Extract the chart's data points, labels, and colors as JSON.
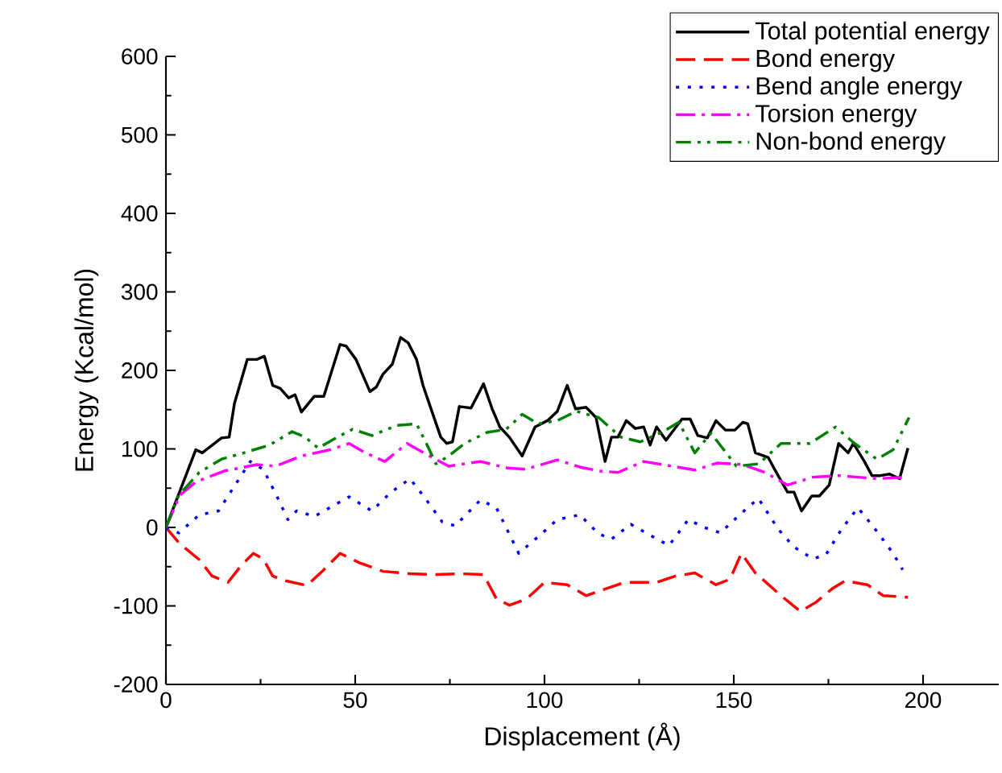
{
  "chart_data": {
    "type": "line",
    "xlabel": "Displacement (Å)",
    "ylabel": "Energy (Kcal/mol)",
    "xlim": [
      0,
      220
    ],
    "ylim": [
      -200,
      600
    ],
    "xticks": [
      0,
      50,
      100,
      150,
      200
    ],
    "yticks": [
      -200,
      -100,
      0,
      100,
      200,
      300,
      400,
      500,
      600
    ],
    "legend": "top right",
    "grid": false,
    "marker": "none",
    "series": [
      {
        "name": "Total potential energy",
        "color": "#000000",
        "line_style": "solid",
        "x": [
          0,
          7.9,
          9.6,
          14.7,
          16.7,
          18.1,
          21.5,
          24,
          26,
          28.2,
          30.2,
          32.4,
          34.1,
          35.8,
          39.2,
          41.7,
          46,
          47.6,
          50.2,
          53.9,
          55.6,
          57.3,
          59.8,
          62,
          64,
          66.2,
          67.9,
          69.6,
          72.6,
          74.2,
          75.7,
          77.5,
          80.6,
          83.9,
          86.1,
          88.2,
          90.7,
          94.1,
          97.5,
          100.8,
          103.4,
          106,
          108.2,
          111,
          113.6,
          116,
          117.7,
          119.4,
          121.6,
          124,
          126.2,
          127.9,
          129.6,
          132.1,
          136.3,
          138.5,
          140.5,
          143,
          145.3,
          147.8,
          150.3,
          152.4,
          153.7,
          155.7,
          159.1,
          161.7,
          164.2,
          165.9,
          167.9,
          170.6,
          172.6,
          175.2,
          177.7,
          180.2,
          181.6,
          184.5,
          186.5,
          188.7,
          191.2,
          193.8,
          196
        ],
        "values": [
          0,
          99,
          95,
          114,
          115,
          158,
          214,
          214,
          218,
          181,
          177,
          165,
          169,
          147,
          167,
          167,
          233,
          231,
          214,
          173,
          179,
          195,
          208,
          242,
          235,
          214,
          181,
          157,
          115,
          107,
          109,
          154,
          152,
          183,
          152,
          128,
          115,
          91,
          128,
          136,
          148,
          181,
          151,
          153,
          140,
          84,
          115,
          115,
          136,
          126,
          128,
          105,
          128,
          111,
          138,
          138,
          117,
          114,
          136,
          124,
          124,
          134,
          132,
          95,
          89,
          66,
          45,
          45,
          21,
          40,
          40,
          54,
          107,
          95,
          107,
          84,
          66,
          66,
          68,
          62,
          101
        ]
      },
      {
        "name": "Bond energy",
        "color": "#ff0000",
        "line_style": "dashed",
        "x": [
          0,
          3.7,
          8.8,
          12.2,
          16.4,
          19.8,
          23.1,
          25.7,
          28.2,
          31.6,
          37.2,
          41.7,
          46,
          51.1,
          57.4,
          64.5,
          71.3,
          78,
          83.9,
          87.3,
          90.7,
          95.3,
          100,
          106,
          111,
          116.9,
          121.1,
          129.6,
          134.6,
          139.7,
          145.3,
          149,
          152,
          155.7,
          162.5,
          167.6,
          171.8,
          176,
          179.4,
          185.3,
          189.5,
          196
        ],
        "values": [
          0,
          -21,
          -41,
          -62,
          -70,
          -49,
          -33,
          -40,
          -62,
          -68,
          -74,
          -54,
          -33,
          -45,
          -56,
          -59,
          -60,
          -59,
          -60,
          -91,
          -99,
          -91,
          -70,
          -73,
          -87,
          -77,
          -70,
          -70,
          -62,
          -58,
          -73,
          -66,
          -33,
          -58,
          -87,
          -107,
          -95,
          -78,
          -68,
          -73,
          -87,
          -89
        ]
      },
      {
        "name": "Bend angle energy",
        "color": "#0000ff",
        "line_style": "dotted",
        "x": [
          0,
          3.4,
          8.8,
          13.9,
          17.6,
          22.3,
          25.7,
          29,
          32.2,
          34.5,
          39.2,
          44.3,
          48.4,
          54.4,
          59.5,
          64.5,
          68.8,
          73,
          76.4,
          83.1,
          87.3,
          93.2,
          98.3,
          103.4,
          109.3,
          114.3,
          117.7,
          122.8,
          128.7,
          132.9,
          138,
          142.2,
          146.5,
          151.5,
          156.5,
          161.7,
          165.9,
          170.9,
          174.3,
          178.5,
          182.8,
          187,
          192.1,
          194.6
        ],
        "values": [
          0,
          -7,
          16,
          21,
          49,
          84,
          74,
          43,
          10,
          21,
          14,
          28,
          39,
          21,
          45,
          62,
          35,
          7,
          2,
          35,
          25,
          -33,
          -12,
          10,
          16,
          -8,
          -15,
          4,
          -12,
          -23,
          10,
          0,
          -7,
          16,
          37,
          -2,
          -25,
          -40,
          -35,
          -2,
          25,
          0,
          -33,
          -54
        ]
      },
      {
        "name": "Torsion energy",
        "color": "#ff00ff",
        "line_style": "dashdot",
        "x": [
          0,
          3.7,
          7.9,
          12.2,
          15.5,
          19.8,
          24,
          29,
          35.8,
          43.4,
          48.4,
          52.7,
          57.8,
          63.7,
          69.6,
          74.7,
          83.1,
          89.9,
          94.9,
          103.4,
          109.3,
          114.3,
          119.4,
          126.2,
          133.8,
          139.7,
          145.6,
          152.4,
          158.3,
          164.2,
          170.9,
          177.7,
          182.8,
          187.8,
          194.6
        ],
        "values": [
          0,
          41,
          58,
          66,
          72,
          76,
          80,
          78,
          91,
          99,
          107,
          95,
          84,
          107,
          91,
          78,
          84,
          76,
          74,
          86,
          77,
          72,
          70,
          84,
          78,
          73,
          82,
          80,
          70,
          54,
          64,
          66,
          64,
          62,
          64
        ]
      },
      {
        "name": "Non-bond energy",
        "color": "#008000",
        "line_style": "dashdotdot",
        "x": [
          0,
          3.4,
          8.8,
          14.7,
          20.6,
          27.4,
          33.3,
          36.8,
          40.2,
          45.3,
          49.3,
          54.4,
          61.1,
          66.2,
          68.8,
          71.3,
          74.7,
          78.9,
          84.8,
          89.9,
          94.1,
          98.3,
          103.4,
          108.4,
          114.3,
          120.2,
          125.3,
          131.3,
          135.5,
          139.7,
          144,
          150.7,
          156.6,
          162.5,
          170.1,
          176.9,
          181.9,
          187.8,
          192.1,
          196.3
        ],
        "values": [
          0,
          41,
          70,
          87,
          95,
          105,
          122,
          115,
          101,
          115,
          125,
          117,
          130,
          132,
          107,
          81,
          91,
          107,
          121,
          125,
          144,
          132,
          136,
          148,
          140,
          115,
          109,
          122,
          134,
          95,
          120,
          78,
          81,
          107,
          107,
          128,
          107,
          87,
          99,
          140
        ]
      }
    ]
  }
}
